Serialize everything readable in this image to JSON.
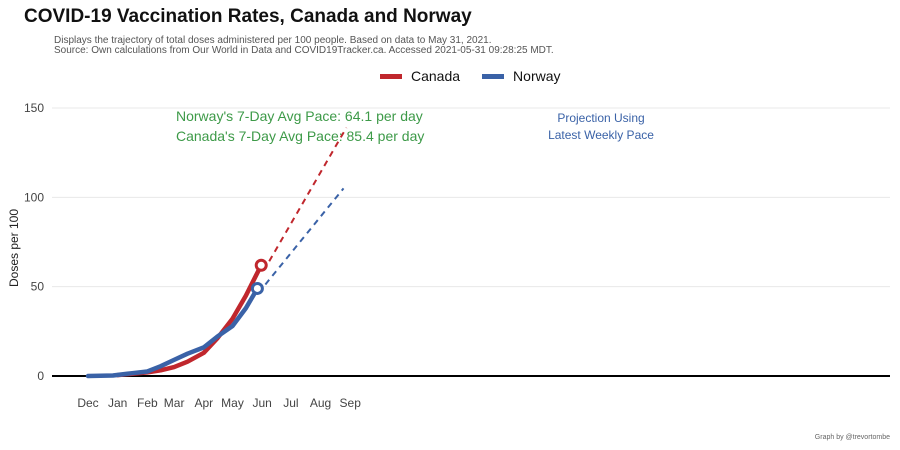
{
  "header": {
    "title": "COVID-19 Vaccination Rates, Canada and Norway",
    "subtitle_line1": "Displays the trajectory of total doses administered per 100 people. Based on data to May 31, 2021.",
    "subtitle_line2": "Source: Own calculations from Our World in Data and COVID19Tracker.ca. Accessed 2021-05-31 09:28:25 MDT."
  },
  "credit": "Graph by @trevortombe",
  "colors": {
    "canada": "#c0272d",
    "norway": "#3a62a7",
    "annotation_green": "#3d9a48",
    "annotation_blue": "#3a62a7"
  },
  "chart_data": {
    "type": "line",
    "title": "COVID-19 Vaccination Rates, Canada and Norway",
    "xlabel": "",
    "ylabel": "Doses per 100",
    "x_ticks": [
      "Dec",
      "Jan",
      "Feb",
      "Mar",
      "Apr",
      "May",
      "Jun",
      "Jul",
      "Aug",
      "Sep"
    ],
    "y_ticks": [
      0,
      50,
      100,
      150
    ],
    "xlim": [
      "2020-12-01",
      "2021-09-01"
    ],
    "ylim": [
      0,
      150
    ],
    "grid": true,
    "legend_position": "top",
    "series": [
      {
        "name": "Canada",
        "color": "#c0272d",
        "x": [
          "2021-01-01",
          "2021-01-15",
          "2021-02-01",
          "2021-02-15",
          "2021-03-01",
          "2021-03-15",
          "2021-04-01",
          "2021-04-15",
          "2021-05-01",
          "2021-05-15",
          "2021-05-31"
        ],
        "y": [
          0.5,
          1.2,
          2.0,
          3.2,
          5.0,
          8.0,
          13.0,
          21.0,
          32.0,
          45.0,
          62.0
        ],
        "end_marker": true
      },
      {
        "name": "Norway",
        "color": "#3a62a7",
        "x": [
          "2020-12-01",
          "2020-12-27",
          "2021-01-15",
          "2021-02-01",
          "2021-02-15",
          "2021-03-01",
          "2021-03-15",
          "2021-04-01",
          "2021-04-15",
          "2021-05-01",
          "2021-05-15",
          "2021-05-27"
        ],
        "y": [
          0,
          0.3,
          1.5,
          2.5,
          5.5,
          9.0,
          12.5,
          16.0,
          22.0,
          28.0,
          38.0,
          49.0
        ],
        "end_marker": true
      }
    ],
    "projections": [
      {
        "series": "Canada",
        "color": "#c0272d",
        "x": [
          "2021-05-31",
          "2021-08-28"
        ],
        "y": [
          62,
          139
        ]
      },
      {
        "series": "Norway",
        "color": "#3a62a7",
        "x": [
          "2021-05-27",
          "2021-08-25"
        ],
        "y": [
          49,
          105
        ]
      }
    ],
    "annotations": {
      "norway_pace": "Norway's 7-Day Avg Pace: 64.1 per day",
      "canada_pace": "Canada's 7-Day Avg Pace: 85.4 per day",
      "projection_line1": "Projection Using",
      "projection_line2": "Latest Weekly Pace"
    }
  }
}
